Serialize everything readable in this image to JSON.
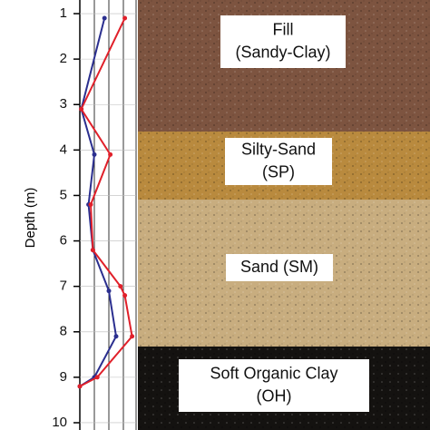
{
  "chart_data": {
    "type": "line",
    "y_label": "Depth (m)",
    "ylim": [
      0.7,
      10.16
    ],
    "yticks": [
      1,
      2,
      3,
      4,
      5,
      6,
      7,
      8,
      9,
      10
    ],
    "y_inverted": true,
    "xlim": [
      0,
      4
    ],
    "series": [
      {
        "color": "#2b2f8f",
        "x": [
          1.7,
          0.1,
          1.0,
          0.6,
          0.9,
          2.0,
          2.5,
          1.0,
          0
        ],
        "y": [
          1.1,
          3.1,
          4.1,
          5.2,
          6.2,
          7.1,
          8.1,
          9.0,
          9.2
        ]
      },
      {
        "color": "#e0202a",
        "x": [
          3.1,
          0.1,
          2.1,
          0.75,
          0.9,
          2.8,
          3.1,
          3.6,
          1.2,
          0
        ],
        "y": [
          1.1,
          3.1,
          4.1,
          5.2,
          6.2,
          7.0,
          7.2,
          8.1,
          9.0,
          9.2
        ]
      }
    ],
    "soil_layers": [
      {
        "label": [
          "Fill",
          "(Sandy-Clay)"
        ]
      },
      {
        "label": [
          "Silty-Sand",
          "(SP)"
        ]
      },
      {
        "label": [
          "Sand (SM)"
        ]
      },
      {
        "label": [
          "Soft Organic Clay",
          "(OH)"
        ]
      }
    ]
  }
}
